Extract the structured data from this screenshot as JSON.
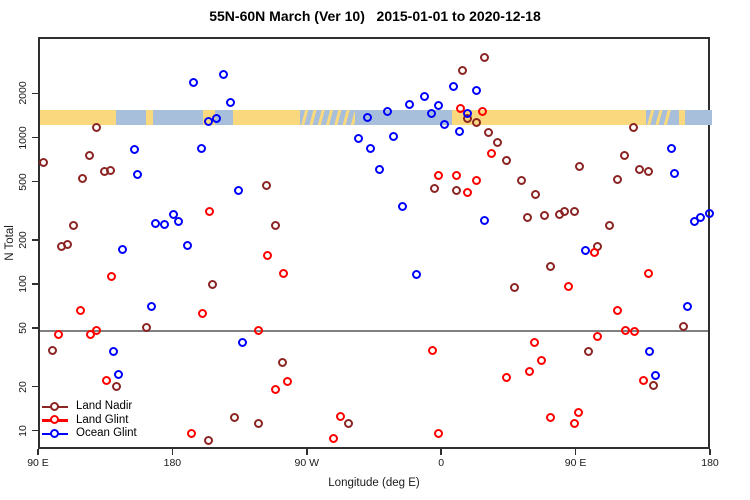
{
  "title": "55N-60N March (Ver 10)   2015-01-01 to 2020-12-18",
  "chart_data": {
    "type": "scatter",
    "title": "55N-60N March (Ver 10)   2015-01-01 to 2020-12-18",
    "xlabel": "Longitude (deg E)",
    "ylabel": "N Total",
    "x_axis": {
      "min": 90,
      "max": 540,
      "ticks": [
        {
          "value": 90,
          "label": "90 E"
        },
        {
          "value": 180,
          "label": "180"
        },
        {
          "value": 270,
          "label": "90 W"
        },
        {
          "value": 360,
          "label": "0"
        },
        {
          "value": 450,
          "label": "90 E"
        },
        {
          "value": 540,
          "label": "180"
        }
      ]
    },
    "y_axis": {
      "scale": "log",
      "min": 7.5,
      "max": 4850,
      "ticks": [
        2000,
        1000,
        500,
        200,
        100,
        50,
        20,
        10
      ]
    },
    "reference_line": {
      "value": 50,
      "color": "#808080"
    },
    "map_band": {
      "n_top": 1580,
      "n_bottom": 1260,
      "land_color": "#FAD87E",
      "ocean_color": "#A8BFDB",
      "segments": [
        {
          "from": 90,
          "to": 141,
          "surface": "land"
        },
        {
          "from": 141,
          "to": 161,
          "surface": "ocean"
        },
        {
          "from": 161,
          "to": 166,
          "surface": "land"
        },
        {
          "from": 166,
          "to": 199,
          "surface": "ocean"
        },
        {
          "from": 199,
          "to": 207,
          "surface": "land"
        },
        {
          "from": 207,
          "to": 219,
          "surface": "ocean"
        },
        {
          "from": 219,
          "to": 264,
          "surface": "land"
        },
        {
          "from": 264,
          "to": 301,
          "surface": "mixed"
        },
        {
          "from": 301,
          "to": 366,
          "surface": "ocean"
        },
        {
          "from": 366,
          "to": 496,
          "surface": "land"
        },
        {
          "from": 496,
          "to": 513,
          "surface": "mixed"
        },
        {
          "from": 513,
          "to": 518,
          "surface": "ocean"
        },
        {
          "from": 518,
          "to": 522,
          "surface": "land"
        },
        {
          "from": 522,
          "to": 540,
          "surface": "ocean"
        }
      ]
    },
    "legend": {
      "position": "bottom-left"
    },
    "series": [
      {
        "name": "Land Nadir",
        "color": "#8B2423",
        "points": [
          [
            128,
            1190
          ],
          [
            123.5,
            775
          ],
          [
            93,
            695
          ],
          [
            119,
            540
          ],
          [
            133.5,
            600
          ],
          [
            137.5,
            610
          ],
          [
            113,
            255
          ],
          [
            105,
            185
          ],
          [
            109,
            190
          ],
          [
            242,
            480
          ],
          [
            248,
            255
          ],
          [
            388,
            3600
          ],
          [
            373,
            2950
          ],
          [
            377,
            1370
          ],
          [
            383,
            1290
          ],
          [
            391,
            1100
          ],
          [
            397,
            950
          ],
          [
            354.5,
            460
          ],
          [
            369,
            445
          ],
          [
            297,
            11.5
          ],
          [
            488,
            1190
          ],
          [
            403,
            715
          ],
          [
            452,
            650
          ],
          [
            482,
            775
          ],
          [
            492,
            620
          ],
          [
            498,
            600
          ],
          [
            477,
            530
          ],
          [
            413,
            520
          ],
          [
            422,
            420
          ],
          [
            417,
            290
          ],
          [
            428,
            300
          ],
          [
            438,
            305
          ],
          [
            441.5,
            320
          ],
          [
            448,
            320
          ],
          [
            472,
            255
          ],
          [
            464,
            185
          ],
          [
            206,
            101
          ],
          [
            161.5,
            52
          ],
          [
            98.5,
            36
          ],
          [
            141.5,
            20.4
          ],
          [
            220.5,
            12.5
          ],
          [
            237,
            11.5
          ],
          [
            203,
            8.7
          ],
          [
            253,
            29.8
          ],
          [
            432,
            134
          ],
          [
            408,
            97.5
          ],
          [
            521,
            52.6
          ],
          [
            458,
            35.4
          ],
          [
            501,
            20.7
          ]
        ]
      },
      {
        "name": "Land Glint",
        "color": "#FF0000",
        "points": [
          [
            204,
            320
          ],
          [
            372,
            1600
          ],
          [
            386.5,
            1530
          ],
          [
            392.5,
            790
          ],
          [
            357,
            565
          ],
          [
            369,
            565
          ],
          [
            383,
            520
          ],
          [
            377,
            430
          ],
          [
            138,
            116
          ],
          [
            117.5,
            67
          ],
          [
            199,
            64.5
          ],
          [
            102.5,
            46
          ],
          [
            124,
            46.5
          ],
          [
            128,
            49.5
          ],
          [
            237,
            49.5
          ],
          [
            135,
            22.4
          ],
          [
            192,
            9.8
          ],
          [
            243,
            160
          ],
          [
            253.5,
            120
          ],
          [
            353,
            36
          ],
          [
            256,
            22
          ],
          [
            248,
            19.4
          ],
          [
            291.5,
            12.7
          ],
          [
            287,
            9
          ],
          [
            357,
            9.8
          ],
          [
            461.5,
            167
          ],
          [
            498,
            121.5
          ],
          [
            444,
            99
          ],
          [
            477,
            67
          ],
          [
            463.5,
            45
          ],
          [
            482.5,
            49.5
          ],
          [
            488.5,
            48.5
          ],
          [
            421.5,
            41
          ],
          [
            426,
            31
          ],
          [
            418,
            26
          ],
          [
            403,
            23.5
          ],
          [
            494.5,
            22.4
          ],
          [
            432,
            12.5
          ],
          [
            451,
            13.5
          ],
          [
            448,
            11.5
          ]
        ]
      },
      {
        "name": "Ocean Glint",
        "color": "#0000FF",
        "points": [
          [
            193,
            2420
          ],
          [
            213,
            2740
          ],
          [
            218,
            1760
          ],
          [
            203,
            1320
          ],
          [
            208.5,
            1370
          ],
          [
            153.5,
            850
          ],
          [
            198.5,
            865
          ],
          [
            156,
            575
          ],
          [
            223,
            445
          ],
          [
            168,
            264
          ],
          [
            173.5,
            260
          ],
          [
            179.5,
            305
          ],
          [
            183,
            273
          ],
          [
            189,
            187
          ],
          [
            145.5,
            175
          ],
          [
            367,
            2270
          ],
          [
            382.5,
            2130
          ],
          [
            348,
            1940
          ],
          [
            338,
            1730
          ],
          [
            357,
            1680
          ],
          [
            352.5,
            1500
          ],
          [
            323,
            1530
          ],
          [
            309.5,
            1410
          ],
          [
            377,
            1480
          ],
          [
            361,
            1245
          ],
          [
            371,
            1115
          ],
          [
            303.5,
            1000
          ],
          [
            327,
            1045
          ],
          [
            312,
            865
          ],
          [
            318,
            620
          ],
          [
            333,
            345
          ],
          [
            388,
            277
          ],
          [
            513,
            858
          ],
          [
            515,
            577
          ],
          [
            528.5,
            274
          ],
          [
            532.5,
            290
          ],
          [
            538.5,
            312
          ],
          [
            456,
            172
          ],
          [
            165,
            72
          ],
          [
            226,
            41
          ],
          [
            139.5,
            35.4
          ],
          [
            143,
            24.6
          ],
          [
            342.5,
            118
          ],
          [
            524,
            72
          ],
          [
            498.5,
            35.4
          ],
          [
            502.5,
            24.3
          ]
        ]
      }
    ]
  }
}
